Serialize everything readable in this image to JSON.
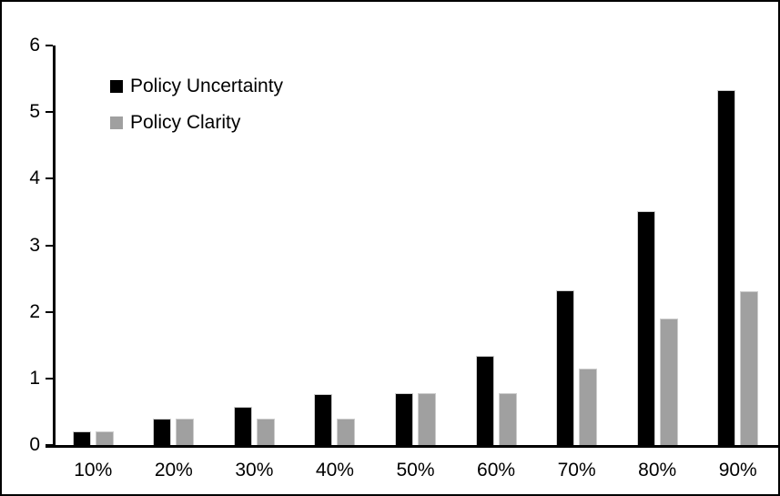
{
  "figure": {
    "background_color": "#ffffff",
    "frame_color": "#000000"
  },
  "chart_data": {
    "type": "bar",
    "title": "",
    "xlabel": "",
    "ylabel": "",
    "categories": [
      "10%",
      "20%",
      "30%",
      "40%",
      "50%",
      "60%",
      "70%",
      "80%",
      "90%"
    ],
    "series": [
      {
        "name": "Policy Uncertainty",
        "color": "#000000",
        "values": [
          0.2,
          0.39,
          0.57,
          0.77,
          0.78,
          1.34,
          2.32,
          3.51,
          5.33
        ]
      },
      {
        "name": "Policy Clarity",
        "color": "#a0a0a0",
        "values": [
          0.2,
          0.39,
          0.39,
          0.39,
          0.78,
          0.78,
          1.15,
          1.9,
          2.31
        ]
      }
    ],
    "ylim": [
      0,
      6
    ],
    "yticks": [
      0,
      1,
      2,
      3,
      4,
      5,
      6
    ],
    "grid": false,
    "legend_position": "top-left-inside"
  }
}
